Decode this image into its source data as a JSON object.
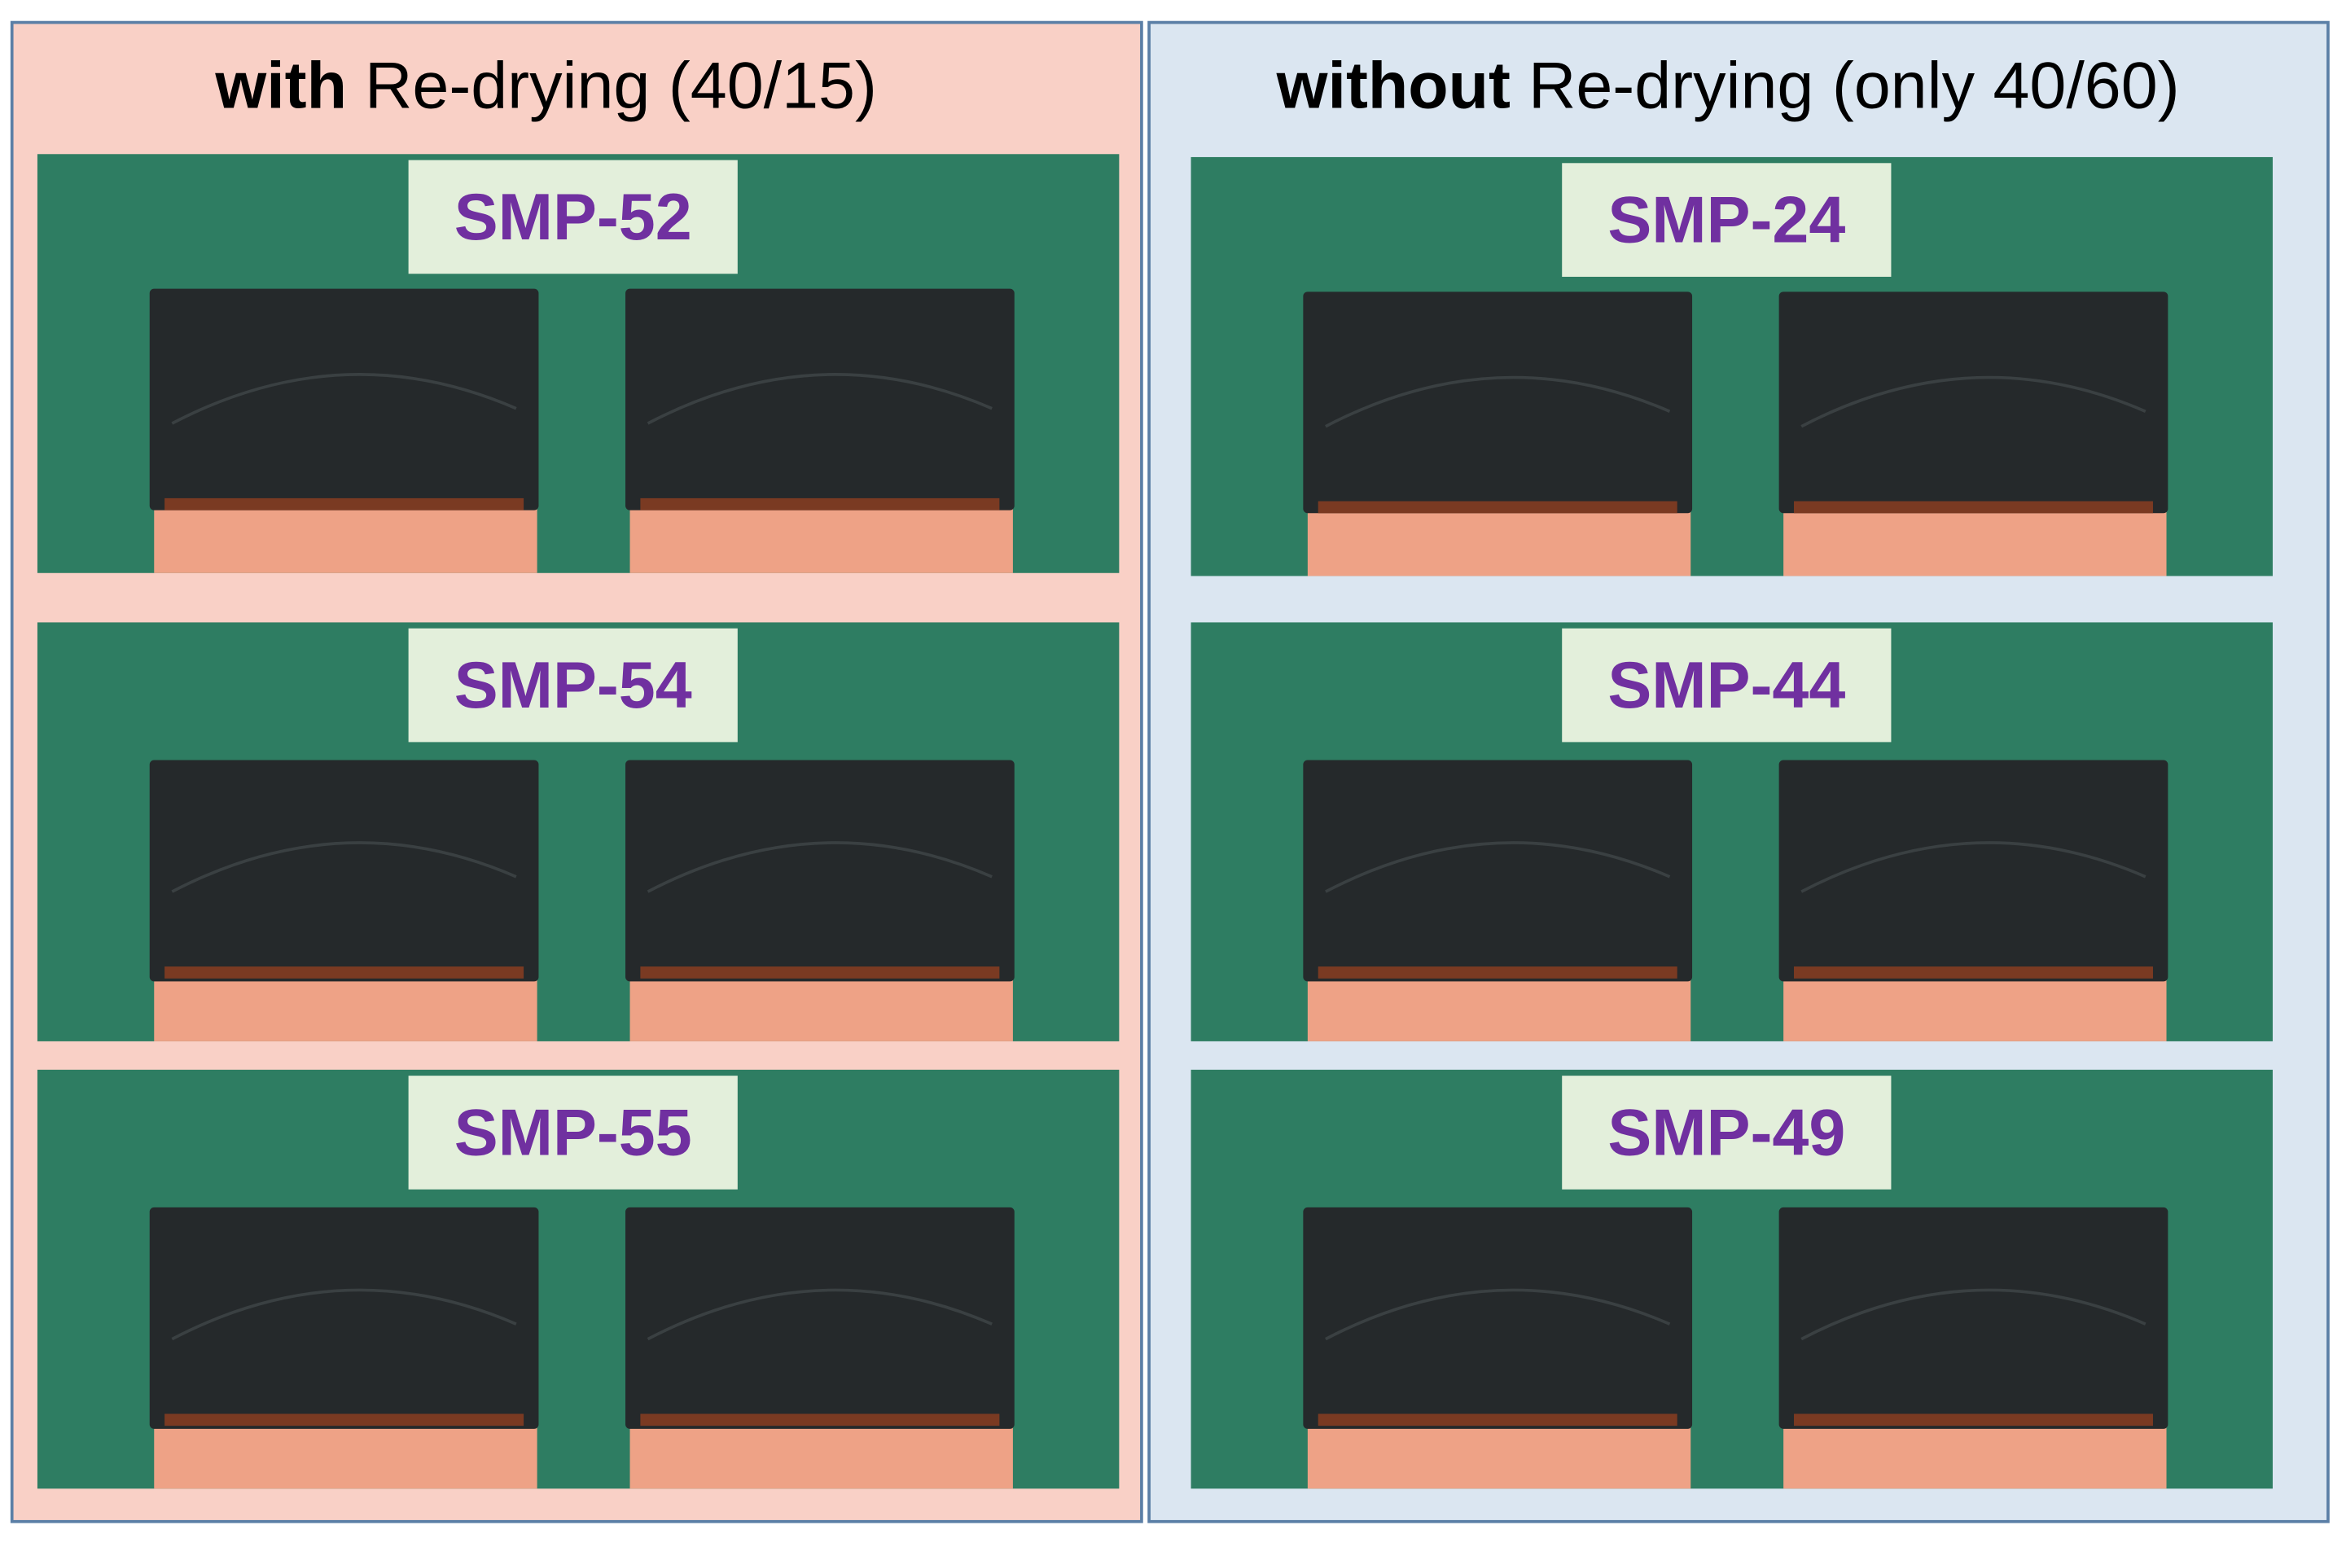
{
  "panels": [
    {
      "title_bold": "with",
      "title_rest": "Re-drying (40/15)",
      "samples": [
        "SMP-52",
        "SMP-54",
        "SMP-55"
      ]
    },
    {
      "title_bold": "without",
      "title_rest": "Re-drying (only 40/60)",
      "samples": [
        "SMP-24",
        "SMP-44",
        "SMP-49"
      ]
    }
  ]
}
